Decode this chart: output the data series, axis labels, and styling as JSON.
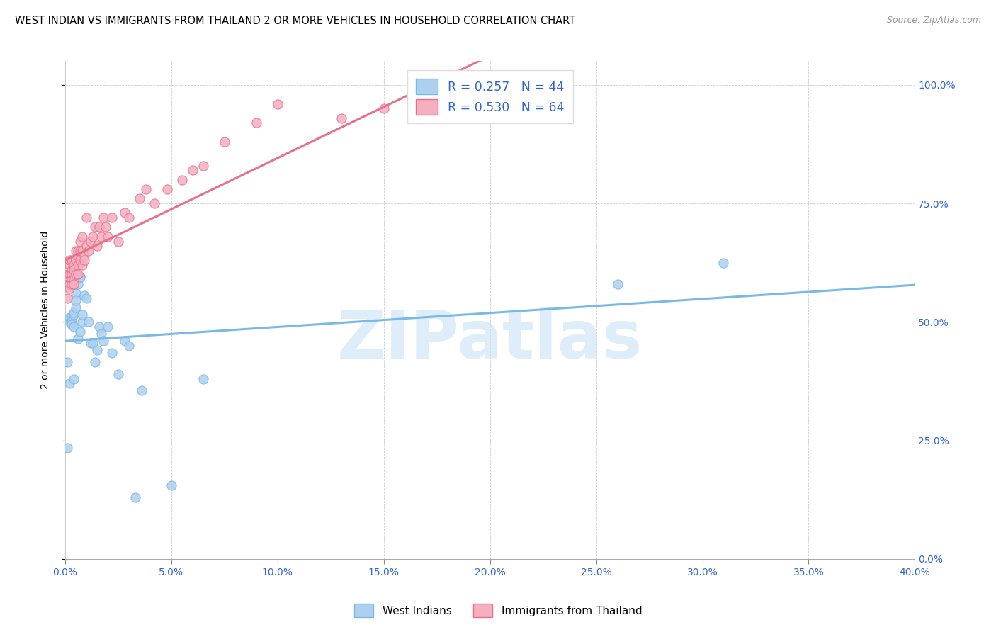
{
  "title": "WEST INDIAN VS IMMIGRANTS FROM THAILAND 2 OR MORE VEHICLES IN HOUSEHOLD CORRELATION CHART",
  "source": "Source: ZipAtlas.com",
  "ylabel": "2 or more Vehicles in Household",
  "xlim": [
    0.0,
    0.4
  ],
  "ylim": [
    0.0,
    1.05
  ],
  "blue_color": "#7ab8e8",
  "pink_color": "#e8708a",
  "blue_fill": "#aed0f0",
  "pink_fill": "#f4b0c0",
  "watermark": "ZIPatlas",
  "legend_r1": "R = 0.257   N = 44",
  "legend_r2": "R = 0.530   N = 64",
  "west_indian_x": [
    0.001,
    0.001,
    0.002,
    0.002,
    0.002,
    0.003,
    0.003,
    0.003,
    0.003,
    0.004,
    0.004,
    0.004,
    0.004,
    0.005,
    0.005,
    0.005,
    0.006,
    0.006,
    0.007,
    0.007,
    0.007,
    0.008,
    0.008,
    0.009,
    0.01,
    0.011,
    0.012,
    0.013,
    0.014,
    0.015,
    0.016,
    0.017,
    0.018,
    0.02,
    0.022,
    0.025,
    0.028,
    0.03,
    0.033,
    0.036,
    0.05,
    0.065,
    0.26,
    0.31
  ],
  "west_indian_y": [
    0.235,
    0.415,
    0.37,
    0.5,
    0.51,
    0.505,
    0.51,
    0.5,
    0.495,
    0.515,
    0.49,
    0.52,
    0.38,
    0.56,
    0.53,
    0.545,
    0.465,
    0.58,
    0.595,
    0.595,
    0.48,
    0.5,
    0.515,
    0.555,
    0.55,
    0.5,
    0.455,
    0.455,
    0.415,
    0.44,
    0.49,
    0.475,
    0.46,
    0.49,
    0.435,
    0.39,
    0.46,
    0.45,
    0.13,
    0.355,
    0.155,
    0.38,
    0.58,
    0.625
  ],
  "thailand_x": [
    0.001,
    0.001,
    0.001,
    0.002,
    0.002,
    0.002,
    0.002,
    0.002,
    0.003,
    0.003,
    0.003,
    0.003,
    0.003,
    0.004,
    0.004,
    0.004,
    0.004,
    0.004,
    0.005,
    0.005,
    0.005,
    0.005,
    0.006,
    0.006,
    0.006,
    0.006,
    0.007,
    0.007,
    0.007,
    0.008,
    0.008,
    0.008,
    0.009,
    0.009,
    0.01,
    0.01,
    0.011,
    0.012,
    0.013,
    0.014,
    0.015,
    0.016,
    0.017,
    0.018,
    0.019,
    0.02,
    0.022,
    0.025,
    0.028,
    0.03,
    0.035,
    0.038,
    0.042,
    0.048,
    0.055,
    0.06,
    0.065,
    0.075,
    0.09,
    0.1,
    0.13,
    0.15,
    0.19,
    0.23
  ],
  "thailand_y": [
    0.6,
    0.58,
    0.55,
    0.62,
    0.6,
    0.63,
    0.58,
    0.57,
    0.61,
    0.59,
    0.58,
    0.63,
    0.6,
    0.6,
    0.62,
    0.59,
    0.61,
    0.58,
    0.63,
    0.6,
    0.63,
    0.65,
    0.64,
    0.62,
    0.6,
    0.65,
    0.63,
    0.67,
    0.65,
    0.62,
    0.65,
    0.68,
    0.64,
    0.63,
    0.66,
    0.72,
    0.65,
    0.67,
    0.68,
    0.7,
    0.66,
    0.7,
    0.68,
    0.72,
    0.7,
    0.68,
    0.72,
    0.67,
    0.73,
    0.72,
    0.76,
    0.78,
    0.75,
    0.78,
    0.8,
    0.82,
    0.83,
    0.88,
    0.92,
    0.96,
    0.93,
    0.95,
    0.96,
    0.97
  ],
  "title_fontsize": 10.5,
  "source_fontsize": 9,
  "tick_fontsize": 10,
  "ylabel_fontsize": 10,
  "legend_fontsize": 12.5
}
